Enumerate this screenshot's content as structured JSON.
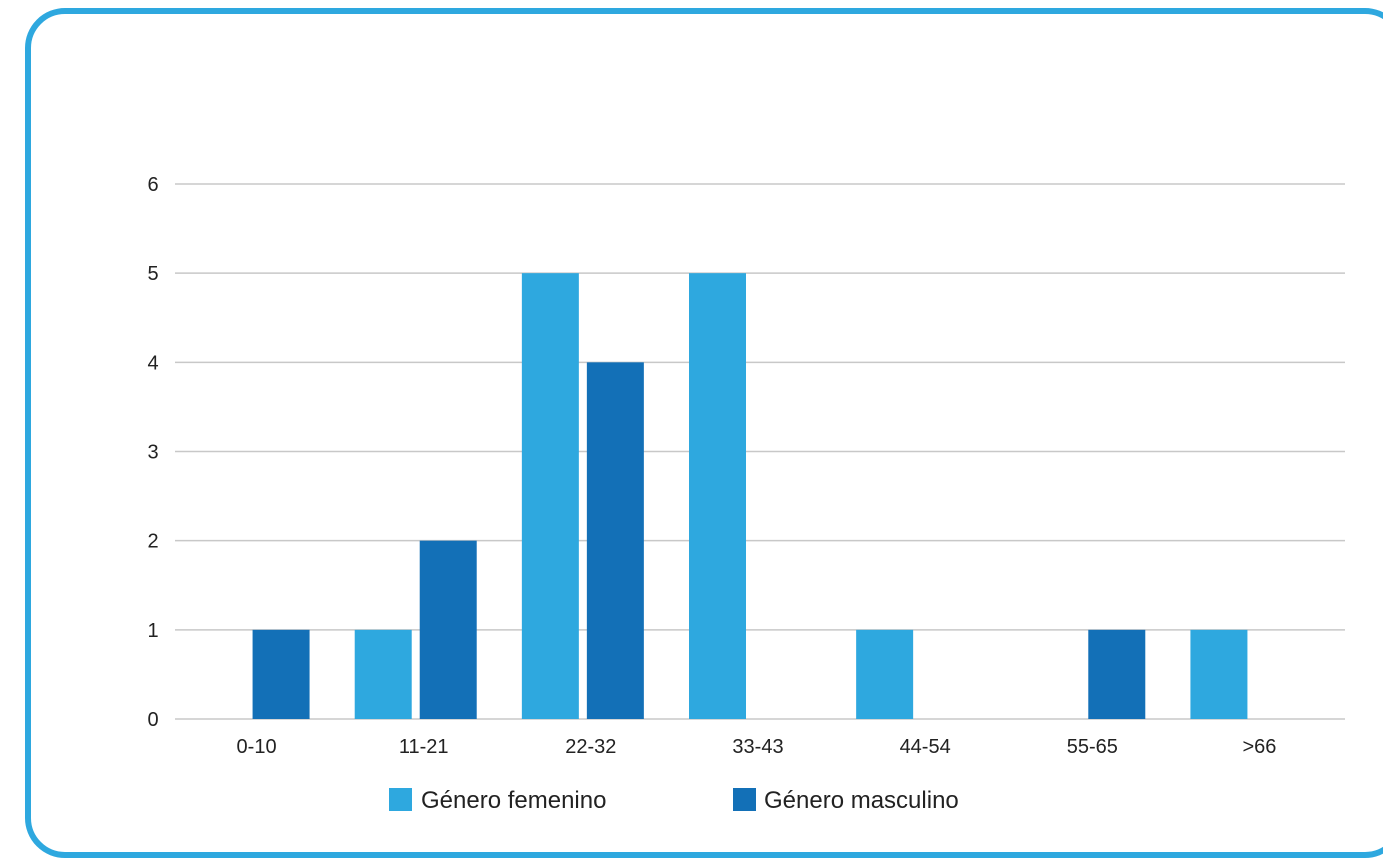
{
  "chart_data": {
    "type": "bar",
    "title": "",
    "xlabel": "",
    "ylabel": "",
    "categories": [
      "0-10",
      "11-21",
      "22-32",
      "33-43",
      "44-54",
      "55-65",
      ">66"
    ],
    "series": [
      {
        "name": "Género femenino",
        "color": "#2ea8df",
        "values": [
          0,
          1,
          5,
          5,
          1,
          0,
          1
        ]
      },
      {
        "name": "Género masculino",
        "color": "#1370b7",
        "values": [
          1,
          2,
          4,
          0,
          0,
          1,
          0
        ]
      }
    ],
    "ylim": [
      0,
      6
    ],
    "yticks": [
      "0",
      "1",
      "2",
      "3",
      "4",
      "5",
      "6"
    ],
    "grid": true,
    "legend_position": "bottom"
  }
}
